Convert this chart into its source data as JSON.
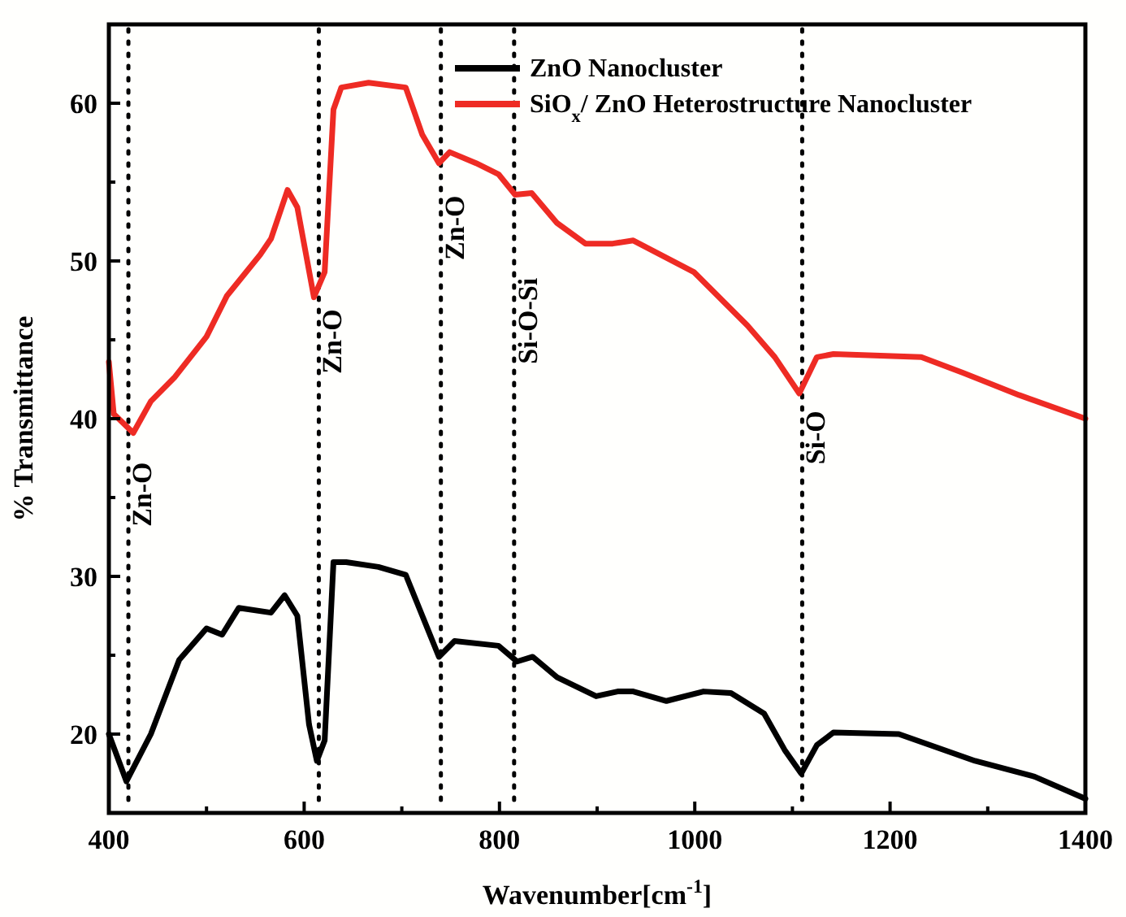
{
  "chart_data": {
    "type": "line",
    "xlabel": "Wavenumber[cm$^{-1}$]",
    "ylabel": "% Transmittance",
    "xlim": [
      400,
      1400
    ],
    "ylim": [
      15,
      65
    ],
    "xticks": [
      400,
      {
        "value": 500,
        "label": null
      },
      600,
      {
        "value": 700,
        "label": null
      },
      800,
      {
        "value": 900,
        "label": null
      },
      1000,
      {
        "value": 1100,
        "label": null
      },
      1200,
      {
        "value": 1300,
        "label": null
      },
      1400
    ],
    "yticks": [
      {
        "value": 15,
        "label": null
      },
      20,
      {
        "value": 25,
        "label": null
      },
      30,
      {
        "value": 35,
        "label": null
      },
      40,
      {
        "value": 45,
        "label": null
      },
      50,
      {
        "value": 55,
        "label": null
      },
      60,
      {
        "value": 65,
        "label": null
      }
    ],
    "grid": false,
    "legend": "top right",
    "line_style": "solid",
    "series": [
      {
        "name": "ZnO Nanocluster",
        "color": "#000000",
        "x": [
          400,
          418,
          443,
          472,
          500,
          516,
          533,
          566,
          580,
          593,
          605,
          613,
          621,
          630,
          643,
          676,
          704,
          721,
          738,
          754,
          799,
          818,
          834,
          859,
          899,
          921,
          937,
          971,
          1009,
          1037,
          1071,
          1092,
          1109,
          1125,
          1142,
          1209,
          1287,
          1348,
          1400
        ],
        "values": [
          20.0,
          17.0,
          20.0,
          24.7,
          26.7,
          26.3,
          28.0,
          27.7,
          28.8,
          27.5,
          20.6,
          18.3,
          19.6,
          30.9,
          30.9,
          30.6,
          30.1,
          27.5,
          24.9,
          25.9,
          25.6,
          24.6,
          24.9,
          23.6,
          22.4,
          22.7,
          22.7,
          22.1,
          22.7,
          22.6,
          21.3,
          19.0,
          17.5,
          19.3,
          20.1,
          20.0,
          18.3,
          17.3,
          15.9
        ]
      },
      {
        "name": "SiO$_{x}$/ ZnO Heterostructure Nanocluster",
        "color": "#ee2b24",
        "x": [
          400,
          405,
          425,
          443,
          467,
          500,
          521,
          555,
          566,
          583,
          593,
          610,
          621,
          630,
          638,
          666,
          704,
          721,
          738,
          749,
          776,
          799,
          816,
          833,
          859,
          888,
          916,
          937,
          999,
          1054,
          1082,
          1107,
          1125,
          1142,
          1232,
          1275,
          1332,
          1400
        ],
        "values": [
          43.6,
          40.3,
          39.1,
          41.1,
          42.6,
          45.2,
          47.8,
          50.4,
          51.4,
          54.5,
          53.4,
          47.7,
          49.3,
          59.6,
          61.0,
          61.3,
          61.0,
          58.0,
          56.2,
          56.9,
          56.2,
          55.5,
          54.2,
          54.3,
          52.4,
          51.1,
          51.1,
          51.3,
          49.3,
          45.9,
          43.9,
          41.6,
          43.9,
          44.1,
          43.9,
          42.9,
          41.5,
          40.0
        ]
      }
    ],
    "ref_lines": [
      {
        "axis": "x",
        "value": 420,
        "line_style": "dotted"
      },
      {
        "axis": "x",
        "value": 615,
        "line_style": "dotted"
      },
      {
        "axis": "x",
        "value": 740,
        "line_style": "dotted"
      },
      {
        "axis": "x",
        "value": 815,
        "line_style": "dotted"
      },
      {
        "axis": "x",
        "value": 1110,
        "line_style": "dotted"
      }
    ],
    "annotations": [
      {
        "text": "Zn-O",
        "x": 420,
        "y": 35.2
      },
      {
        "text": "Zn-O",
        "x": 615,
        "y": 44.9
      },
      {
        "text": "Zn-O",
        "x": 740,
        "y": 52.1
      },
      {
        "text": "Si-O-Si",
        "x": 815,
        "y": 46.2
      },
      {
        "text": "Si-O",
        "x": 1110,
        "y": 38.8
      }
    ]
  }
}
